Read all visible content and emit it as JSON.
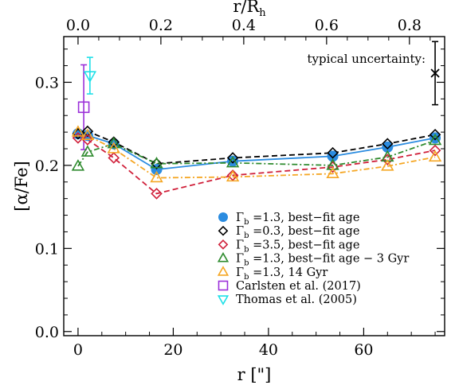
{
  "chart_data": {
    "type": "line",
    "xlabel": "r [\"]",
    "ylabel": "[α/Fe]",
    "top_xlabel_main": "r/R",
    "top_xlabel_sub": "h",
    "xlim": [
      -3,
      77
    ],
    "ylim": [
      -0.005,
      0.355
    ],
    "top_xlim": [
      -0.0345,
      0.885
    ],
    "x_ticks": [
      0,
      20,
      40,
      60
    ],
    "x_tick_labels": [
      "0",
      "20",
      "40",
      "60"
    ],
    "y_ticks": [
      0.0,
      0.1,
      0.2,
      0.3
    ],
    "y_tick_labels": [
      "0.0",
      "0.1",
      "0.2",
      "0.3"
    ],
    "top_ticks": [
      0.0,
      0.2,
      0.4,
      0.6,
      0.8
    ],
    "top_tick_labels": [
      "0.0",
      "0.2",
      "0.4",
      "0.6",
      "0.8"
    ],
    "grid": false,
    "legend_position": "bottom-center",
    "typical_uncertainty": {
      "label": "typical uncertainty:",
      "x": 75,
      "y": 0.311,
      "err": 0.038
    },
    "series": [
      {
        "name": "=1.3, best−fit age",
        "gamma_symbol": "Γ",
        "gamma_sub": "b",
        "marker": "filled-circle",
        "line": "solid",
        "color": "#2b8ce0",
        "x": [
          0,
          2,
          7.5,
          16.5,
          32.5,
          53.5,
          65,
          75
        ],
        "y": [
          0.238,
          0.236,
          0.226,
          0.195,
          0.205,
          0.211,
          0.222,
          0.233
        ]
      },
      {
        "name": "=0.3, best−fit age",
        "gamma_symbol": "Γ",
        "gamma_sub": "b",
        "marker": "open-diamond",
        "line": "dashed",
        "color": "#000000",
        "x": [
          0,
          2,
          7.5,
          16.5,
          32.5,
          53.5,
          65,
          75
        ],
        "y": [
          0.238,
          0.241,
          0.228,
          0.202,
          0.209,
          0.215,
          0.226,
          0.237
        ]
      },
      {
        "name": "=3.5, best−fit age",
        "gamma_symbol": "Γ",
        "gamma_sub": "b",
        "marker": "open-diamond",
        "line": "dashed",
        "color": "#d0203a",
        "x": [
          0,
          2,
          7.5,
          16.5,
          32.5,
          53.5,
          65,
          75
        ],
        "y": [
          0.233,
          0.231,
          0.209,
          0.166,
          0.188,
          0.198,
          0.207,
          0.218
        ]
      },
      {
        "name": "=1.3, best−fit age − 3 Gyr",
        "gamma_symbol": "Γ",
        "gamma_sub": "b",
        "marker": "open-triangle-up",
        "line": "dashdot",
        "color": "#2e8b2e",
        "x": [
          0,
          2,
          7.5,
          16.5,
          32.5,
          53.5,
          65,
          75
        ],
        "y": [
          0.199,
          0.216,
          0.226,
          0.202,
          0.203,
          0.2,
          0.21,
          0.23
        ]
      },
      {
        "name": "=1.3, 14 Gyr",
        "gamma_symbol": "Γ",
        "gamma_sub": "b",
        "marker": "open-triangle-up",
        "line": "dashdot",
        "color": "#f5a623",
        "x": [
          0,
          2,
          7.5,
          16.5,
          32.5,
          53.5,
          65,
          75
        ],
        "y": [
          0.24,
          0.236,
          0.22,
          0.185,
          0.186,
          0.19,
          0.199,
          0.21
        ]
      },
      {
        "name": "Carlsten et al. (2017)",
        "marker": "open-square",
        "line": "none",
        "color": "#9b30d9",
        "x": [
          1.2
        ],
        "y": [
          0.27
        ],
        "err": [
          0.051
        ]
      },
      {
        "name": "Thomas et al. (2005)",
        "marker": "open-triangle-down",
        "line": "none",
        "color": "#1ee0e8",
        "x": [
          2.5
        ],
        "y": [
          0.308
        ],
        "err": [
          0.022
        ]
      }
    ]
  }
}
